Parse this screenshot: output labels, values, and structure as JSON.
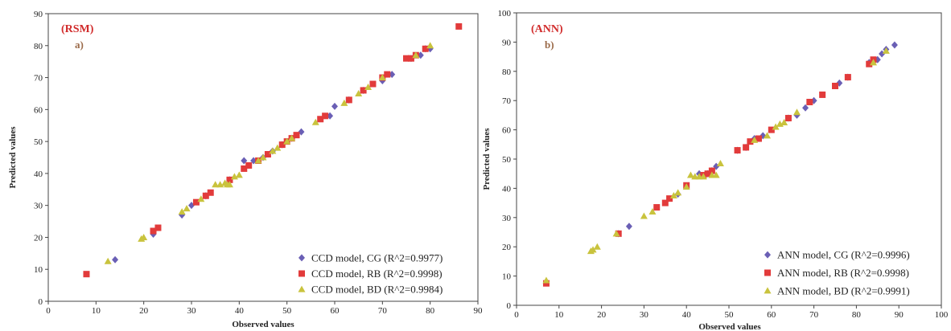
{
  "chart_data": [
    {
      "type": "scatter",
      "tag": "(RSM)",
      "panel": "a)",
      "xlabel": "Observed values",
      "ylabel": "Predicted values",
      "xlim": [
        0,
        90
      ],
      "ylim": [
        0,
        90
      ],
      "xticks": [
        0,
        10,
        20,
        30,
        40,
        50,
        60,
        70,
        80,
        90
      ],
      "yticks": [
        0,
        10,
        20,
        30,
        40,
        50,
        60,
        70,
        80,
        90
      ],
      "grid": false,
      "legend_position": "bottom-right",
      "series": [
        {
          "name": "CCD model, CG (R^2=0.9977)",
          "marker": "diamond",
          "color": "#6a5fb5",
          "points": [
            [
              14,
              13
            ],
            [
              22,
              21
            ],
            [
              28,
              27
            ],
            [
              30,
              30
            ],
            [
              33,
              33
            ],
            [
              38,
              38
            ],
            [
              41,
              44
            ],
            [
              43,
              44
            ],
            [
              45,
              45
            ],
            [
              47,
              47
            ],
            [
              49,
              49
            ],
            [
              51,
              51
            ],
            [
              53,
              53
            ],
            [
              59,
              58
            ],
            [
              60,
              61
            ],
            [
              63,
              63
            ],
            [
              66,
              66
            ],
            [
              70,
              69
            ],
            [
              72,
              71
            ],
            [
              76,
              76
            ],
            [
              78,
              77
            ],
            [
              79,
              79
            ],
            [
              80,
              79
            ]
          ]
        },
        {
          "name": "CCD model, RB (R^2=0.9998)",
          "marker": "square",
          "color": "#e23b3b",
          "points": [
            [
              8,
              8.5
            ],
            [
              22,
              22
            ],
            [
              23,
              23
            ],
            [
              31,
              31
            ],
            [
              33,
              33
            ],
            [
              34,
              34
            ],
            [
              38,
              38
            ],
            [
              41,
              41.5
            ],
            [
              42,
              42.5
            ],
            [
              44,
              44
            ],
            [
              46,
              46
            ],
            [
              49,
              49
            ],
            [
              50,
              50
            ],
            [
              51,
              51
            ],
            [
              52,
              52
            ],
            [
              57,
              57
            ],
            [
              58,
              58
            ],
            [
              63,
              63
            ],
            [
              66,
              66
            ],
            [
              68,
              68
            ],
            [
              70,
              70
            ],
            [
              71,
              71
            ],
            [
              75,
              76
            ],
            [
              76,
              76
            ],
            [
              77,
              77
            ],
            [
              79,
              79
            ],
            [
              86,
              86
            ]
          ]
        },
        {
          "name": "CCD model, BD (R^2=0.9984)",
          "marker": "triangle",
          "color": "#c9c33d",
          "points": [
            [
              12.5,
              12.5
            ],
            [
              19.5,
              19.5
            ],
            [
              20,
              20
            ],
            [
              28,
              28
            ],
            [
              29,
              29
            ],
            [
              32,
              32
            ],
            [
              35,
              36.5
            ],
            [
              36,
              36.5
            ],
            [
              37,
              37
            ],
            [
              37.5,
              36.5
            ],
            [
              38,
              36.5
            ],
            [
              39,
              39
            ],
            [
              40,
              39.5
            ],
            [
              44,
              44
            ],
            [
              45,
              45
            ],
            [
              47,
              47
            ],
            [
              48,
              48
            ],
            [
              50,
              50
            ],
            [
              51,
              51
            ],
            [
              56,
              56
            ],
            [
              62,
              62
            ],
            [
              65,
              65
            ],
            [
              67,
              67
            ],
            [
              70,
              70
            ],
            [
              77,
              77
            ],
            [
              80,
              80
            ]
          ]
        }
      ]
    },
    {
      "type": "scatter",
      "tag": "(ANN)",
      "panel": "b)",
      "xlabel": "Observed values",
      "ylabel": "Predicted values",
      "xlim": [
        0,
        100
      ],
      "ylim": [
        0,
        100
      ],
      "xticks": [
        0,
        10,
        20,
        30,
        40,
        50,
        60,
        70,
        80,
        90,
        100
      ],
      "yticks": [
        0,
        10,
        20,
        30,
        40,
        50,
        60,
        70,
        80,
        90,
        100
      ],
      "grid": false,
      "legend_position": "bottom-right",
      "series": [
        {
          "name": "ANN model, CG (R^2=0.9996)",
          "marker": "diamond",
          "color": "#6a5fb5",
          "points": [
            [
              7,
              8
            ],
            [
              24,
              24.5
            ],
            [
              26.5,
              27
            ],
            [
              38,
              38
            ],
            [
              43,
              45
            ],
            [
              45,
              45
            ],
            [
              46,
              46
            ],
            [
              47,
              47.5
            ],
            [
              52,
              53
            ],
            [
              54,
              54
            ],
            [
              56,
              57
            ],
            [
              58,
              58
            ],
            [
              64,
              64
            ],
            [
              66,
              65
            ],
            [
              68,
              67.5
            ],
            [
              70,
              70
            ],
            [
              76,
              76
            ],
            [
              78,
              78
            ],
            [
              83,
              83
            ],
            [
              85,
              84
            ],
            [
              86,
              86
            ],
            [
              87,
              87.5
            ],
            [
              89,
              89
            ]
          ]
        },
        {
          "name": "ANN model, RB (R^2=0.9998)",
          "marker": "square",
          "color": "#e23b3b",
          "points": [
            [
              7,
              7.5
            ],
            [
              24,
              24.5
            ],
            [
              33,
              33.5
            ],
            [
              35,
              35
            ],
            [
              36,
              36.5
            ],
            [
              40,
              41
            ],
            [
              44,
              44.5
            ],
            [
              45,
              45
            ],
            [
              46,
              46
            ],
            [
              52,
              53
            ],
            [
              54,
              54
            ],
            [
              55,
              56
            ],
            [
              57,
              57
            ],
            [
              60,
              60
            ],
            [
              64,
              64
            ],
            [
              69,
              69.5
            ],
            [
              72,
              72
            ],
            [
              75,
              75
            ],
            [
              78,
              78
            ],
            [
              83,
              82.5
            ],
            [
              84,
              84
            ]
          ]
        },
        {
          "name": "ANN model, BD (R^2=0.9991)",
          "marker": "triangle",
          "color": "#c9c33d",
          "points": [
            [
              7,
              8.5
            ],
            [
              17.5,
              18.5
            ],
            [
              18,
              19
            ],
            [
              19,
              20
            ],
            [
              23.5,
              24.5
            ],
            [
              30,
              30.5
            ],
            [
              32,
              32
            ],
            [
              37,
              37.5
            ],
            [
              38,
              38.5
            ],
            [
              40,
              40.5
            ],
            [
              41,
              44.5
            ],
            [
              42,
              44
            ],
            [
              43,
              44
            ],
            [
              44,
              44
            ],
            [
              46,
              44.5
            ],
            [
              47,
              44.5
            ],
            [
              48,
              48.5
            ],
            [
              56,
              56.5
            ],
            [
              59,
              58
            ],
            [
              61,
              61
            ],
            [
              62,
              62
            ],
            [
              63,
              62.5
            ],
            [
              66,
              66
            ],
            [
              84,
              83
            ],
            [
              87,
              87
            ]
          ]
        }
      ]
    }
  ]
}
